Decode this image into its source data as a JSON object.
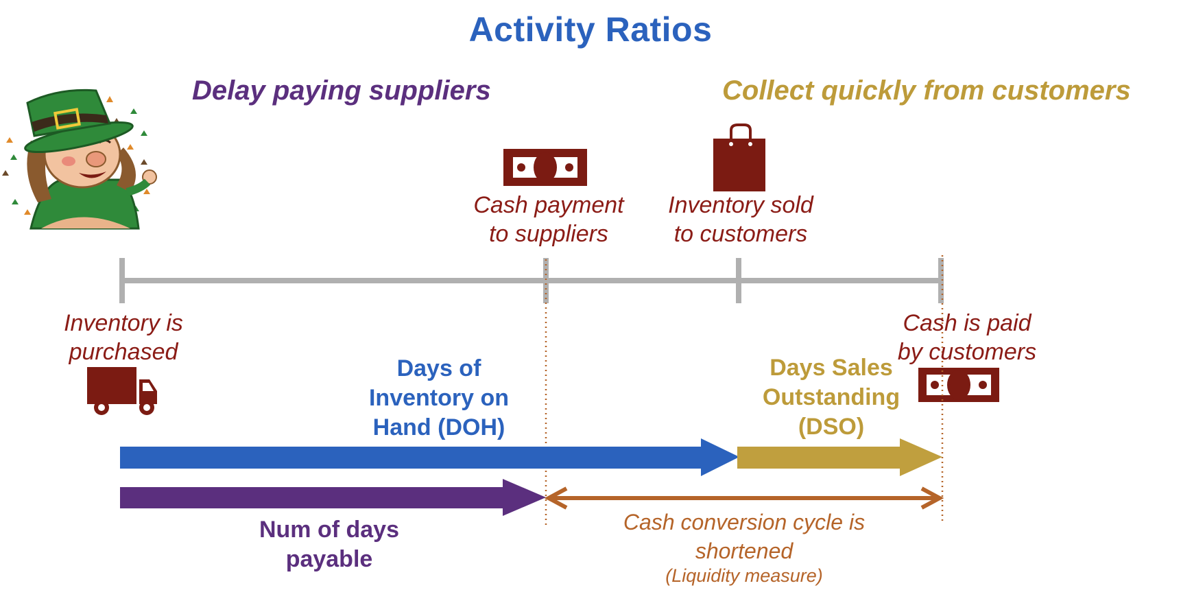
{
  "title": "Activity Ratios",
  "headings": {
    "left": "Delay paying suppliers",
    "right": "Collect quickly from customers"
  },
  "events": {
    "cash_payment": [
      "Cash payment",
      "to suppliers"
    ],
    "inventory_sold": [
      "Inventory sold",
      "to customers"
    ],
    "inventory_purchased": [
      "Inventory is",
      "purchased"
    ],
    "cash_paid": [
      "Cash is paid",
      "by customers"
    ]
  },
  "bars": {
    "doh": [
      "Days of",
      "Inventory on",
      "Hand (DOH)"
    ],
    "dso": [
      "Days Sales",
      "Outstanding",
      "(DSO)"
    ],
    "payable": [
      "Num of days",
      "payable"
    ]
  },
  "cash_conversion": {
    "lines": [
      "Cash conversion cycle is",
      "shortened"
    ],
    "note": "(Liquidity measure)"
  },
  "icons": {
    "mascot": "leprechaun-mascot-icon",
    "banknote": "banknote-icon",
    "bag": "shopping-bag-icon",
    "truck": "delivery-truck-icon"
  },
  "colors": {
    "title": "#2b62bd",
    "doh_bar": "#2b62bd",
    "dso_bar": "#c09f3e",
    "payable_bar": "#5b2f7e",
    "cycle_arrow": "#b56429",
    "event_text": "#8b1c16",
    "icon_fill": "#7b1b12",
    "timeline": "#b0b0b0"
  }
}
